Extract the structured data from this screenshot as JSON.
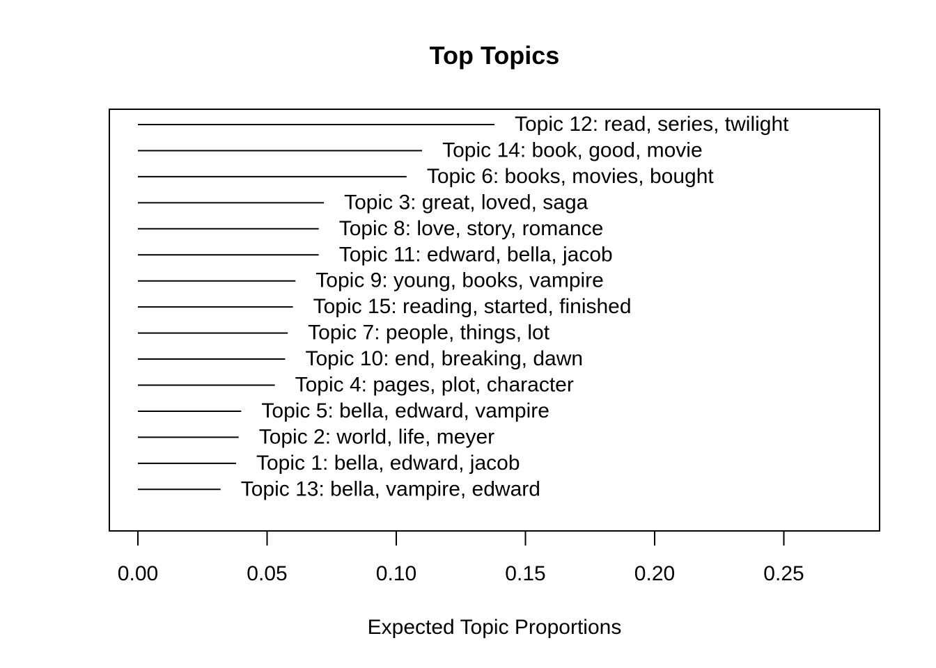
{
  "chart_data": {
    "type": "bar",
    "orientation": "horizontal",
    "title": "Top Topics",
    "xlabel": "Expected Topic Proportions",
    "ylabel": "",
    "xlim": [
      0,
      0.287
    ],
    "xticks": [
      "0.00",
      "0.05",
      "0.10",
      "0.15",
      "0.20",
      "0.25"
    ],
    "grid": false,
    "categories": [
      "Topic 12: read, series, twilight",
      "Topic 14: book, good, movie",
      "Topic 6: books, movies, bought",
      "Topic 3: great, loved, saga",
      "Topic 8: love, story, romance",
      "Topic 11: edward, bella, jacob",
      "Topic 9: young, books, vampire",
      "Topic 15: reading, started, finished",
      "Topic 7: people, things, lot",
      "Topic 10: end, breaking, dawn",
      "Topic 4: pages, plot, character",
      "Topic 5: bella, edward, vampire",
      "Topic 2: world, life, meyer",
      "Topic 1: bella, edward, jacob",
      "Topic 13: bella, vampire, edward"
    ],
    "values": [
      0.138,
      0.11,
      0.104,
      0.072,
      0.07,
      0.07,
      0.061,
      0.06,
      0.058,
      0.057,
      0.053,
      0.04,
      0.039,
      0.038,
      0.032
    ]
  }
}
